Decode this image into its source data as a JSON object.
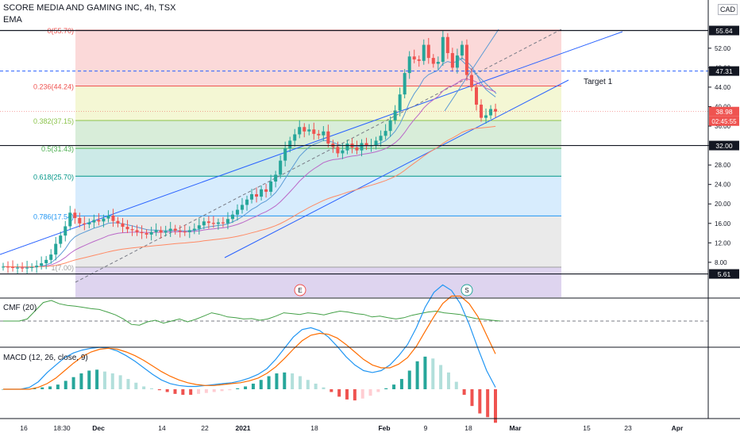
{
  "header": {
    "symbol_title": "SCORE MEDIA AND GAMING INC, 4h, TSX",
    "ema_label": "EMA",
    "currency": "CAD"
  },
  "colors": {
    "up": "#26a69a",
    "down": "#ef5350",
    "axis_text": "#131722",
    "grid": "#e0e3eb"
  },
  "chart_data": [
    {
      "type": "candlestick",
      "title": "SCORE MEDIA AND GAMING INC, 4h, TSX",
      "y_ticks": [
        "52.00",
        "48.00",
        "44.00",
        "40.00",
        "36.00",
        "32.00",
        "28.00",
        "24.00",
        "20.00",
        "16.00",
        "12.00",
        "8.00"
      ],
      "ylim": [
        5,
        58
      ],
      "x_ticks": [
        "16",
        "18:30",
        "Dec",
        "7",
        "14",
        "22",
        "2021",
        "11",
        "18",
        "25",
        "Feb",
        "9",
        "15",
        "22",
        "Mar",
        "15",
        "23",
        "Apr",
        "21"
      ],
      "price_labels": [
        {
          "value": 55.64,
          "text": "55.64",
          "color": "#131722"
        },
        {
          "value": 47.31,
          "text": "47.31",
          "color": "#131722"
        },
        {
          "value": 38.98,
          "text": "38.98",
          "color": "#ef5350"
        },
        {
          "value": 32.0,
          "text": "32.00",
          "color": "#131722"
        },
        {
          "value": 5.61,
          "text": "5.61",
          "color": "#131722"
        }
      ],
      "countdown": "02:45:55",
      "fib_levels": [
        {
          "ratio": "0",
          "text": "0(55.70)",
          "value": 55.7
        },
        {
          "ratio": "0.236",
          "text": "0.236(44.24)",
          "value": 44.24
        },
        {
          "ratio": "0.382",
          "text": "0.382(37.15)",
          "value": 37.15
        },
        {
          "ratio": "0.5",
          "text": "0.5(31.43)",
          "value": 31.43
        },
        {
          "ratio": "0.618",
          "text": "0.618(25.70)",
          "value": 25.7
        },
        {
          "ratio": "0.786",
          "text": "0.786(17.54)",
          "value": 17.54
        },
        {
          "ratio": "1",
          "text": "1(7.00)",
          "value": 7.0
        }
      ],
      "annotations": [
        "Target 1"
      ],
      "event_markers": [
        "E",
        "S"
      ],
      "candles_close": [
        7.1,
        7.0,
        6.9,
        6.9,
        6.8,
        6.9,
        7.0,
        7.3,
        7.8,
        8.5,
        9.6,
        11.8,
        13.5,
        15.4,
        18.2,
        17.1,
        16.0,
        15.8,
        16.2,
        16.7,
        16.4,
        17.0,
        17.6,
        16.5,
        16.0,
        15.3,
        14.8,
        14.6,
        14.2,
        14.0,
        13.7,
        14.2,
        14.6,
        14.1,
        14.4,
        14.9,
        14.5,
        14.3,
        14.2,
        14.6,
        14.9,
        15.6,
        16.4,
        16.1,
        15.9,
        16.2,
        16.0,
        16.9,
        17.8,
        18.8,
        19.8,
        20.9,
        22.0,
        21.5,
        23.0,
        22.5,
        24.6,
        26.0,
        28.9,
        31.4,
        33.0,
        34.3,
        35.8,
        34.9,
        35.3,
        34.4,
        34.1,
        34.9,
        32.4,
        31.7,
        30.4,
        31.0,
        32.4,
        31.6,
        31.0,
        32.5,
        31.9,
        32.0,
        33.0,
        34.0,
        35.0,
        37.2,
        39.2,
        42.5,
        46.9,
        50.3,
        49.7,
        49.4,
        52.7,
        50.0,
        48.8,
        49.2,
        54.3,
        51.0,
        48.0,
        50.5,
        52.7,
        46.5,
        44.0,
        40.4,
        37.7,
        38.2,
        39.5,
        38.98
      ],
      "ema_lines": [
        "EMA fast",
        "EMA mid",
        "EMA slow"
      ]
    },
    {
      "type": "line",
      "title": "CMF (20)",
      "y_ticks": [
        "0.50",
        "0.00",
        "-0.50"
      ],
      "ylim": [
        -0.6,
        0.6
      ],
      "values": [
        0.0,
        0.0,
        0.0,
        0.05,
        0.25,
        0.45,
        0.5,
        0.42,
        0.38,
        0.36,
        0.33,
        0.3,
        0.28,
        0.22,
        0.15,
        0.05,
        -0.08,
        -0.1,
        -0.02,
        0.02,
        -0.05,
        0.0,
        0.05,
        -0.02,
        0.04,
        0.12,
        0.2,
        0.16,
        0.1,
        0.08,
        0.05,
        0.06,
        0.02,
        0.05,
        0.12,
        0.2,
        0.18,
        0.16,
        0.2,
        0.18,
        0.15,
        0.2,
        0.24,
        0.22,
        0.18,
        0.16,
        0.1,
        0.12,
        0.08,
        0.05,
        0.08,
        0.14,
        0.18,
        0.22,
        0.24,
        0.2,
        0.18,
        0.16,
        0.1,
        0.06,
        0.04,
        0.02,
        0.0
      ]
    },
    {
      "type": "bar",
      "title": "MACD (12, 26, close, 9)",
      "y_ticks": [
        "4.00",
        "2.00",
        "0.00",
        "-2.00"
      ],
      "ylim": [
        -2.8,
        5.0
      ],
      "histogram": [
        0.0,
        0.0,
        0.0,
        0.0,
        0.05,
        0.1,
        0.15,
        0.25,
        0.45,
        0.65,
        0.85,
        1.0,
        1.05,
        0.95,
        0.85,
        0.75,
        0.55,
        0.35,
        0.15,
        0.05,
        -0.05,
        -0.15,
        -0.25,
        -0.3,
        -0.3,
        -0.25,
        -0.2,
        -0.15,
        -0.1,
        -0.05,
        0.05,
        0.15,
        0.3,
        0.5,
        0.7,
        0.85,
        0.9,
        0.85,
        0.7,
        0.5,
        0.3,
        0.1,
        -0.15,
        -0.4,
        -0.55,
        -0.6,
        -0.5,
        -0.35,
        -0.15,
        0.05,
        0.25,
        0.55,
        1.0,
        1.5,
        1.75,
        1.65,
        1.3,
        0.9,
        0.4,
        -0.3,
        -0.9,
        -1.3,
        -1.5,
        -1.8
      ],
      "macd_line": [
        0.0,
        0.0,
        0.0,
        0.1,
        0.4,
        0.9,
        1.3,
        1.7,
        1.95,
        2.1,
        2.2,
        2.25,
        2.2,
        2.05,
        1.8,
        1.5,
        1.15,
        0.8,
        0.5,
        0.3,
        0.2,
        0.15,
        0.15,
        0.2,
        0.25,
        0.3,
        0.35,
        0.45,
        0.6,
        0.8,
        1.1,
        1.6,
        2.2,
        2.8,
        3.2,
        3.3,
        3.15,
        2.8,
        2.3,
        1.75,
        1.3,
        1.0,
        0.9,
        1.0,
        1.3,
        1.8,
        2.4,
        3.3,
        4.4,
        5.2,
        5.6,
        5.3,
        4.6,
        3.5,
        2.2,
        1.0,
        0.1
      ],
      "signal_line": [
        0.0,
        0.0,
        0.0,
        0.0,
        0.1,
        0.3,
        0.6,
        1.0,
        1.4,
        1.75,
        2.0,
        2.15,
        2.2,
        2.15,
        2.0,
        1.8,
        1.55,
        1.25,
        0.95,
        0.7,
        0.5,
        0.35,
        0.25,
        0.2,
        0.2,
        0.25,
        0.3,
        0.35,
        0.45,
        0.6,
        0.85,
        1.2,
        1.65,
        2.15,
        2.6,
        2.9,
        3.0,
        2.95,
        2.75,
        2.4,
        2.0,
        1.6,
        1.3,
        1.15,
        1.15,
        1.35,
        1.7,
        2.3,
        3.1,
        3.9,
        4.6,
        5.0,
        5.0,
        4.6,
        3.9,
        2.9,
        1.9
      ]
    }
  ]
}
